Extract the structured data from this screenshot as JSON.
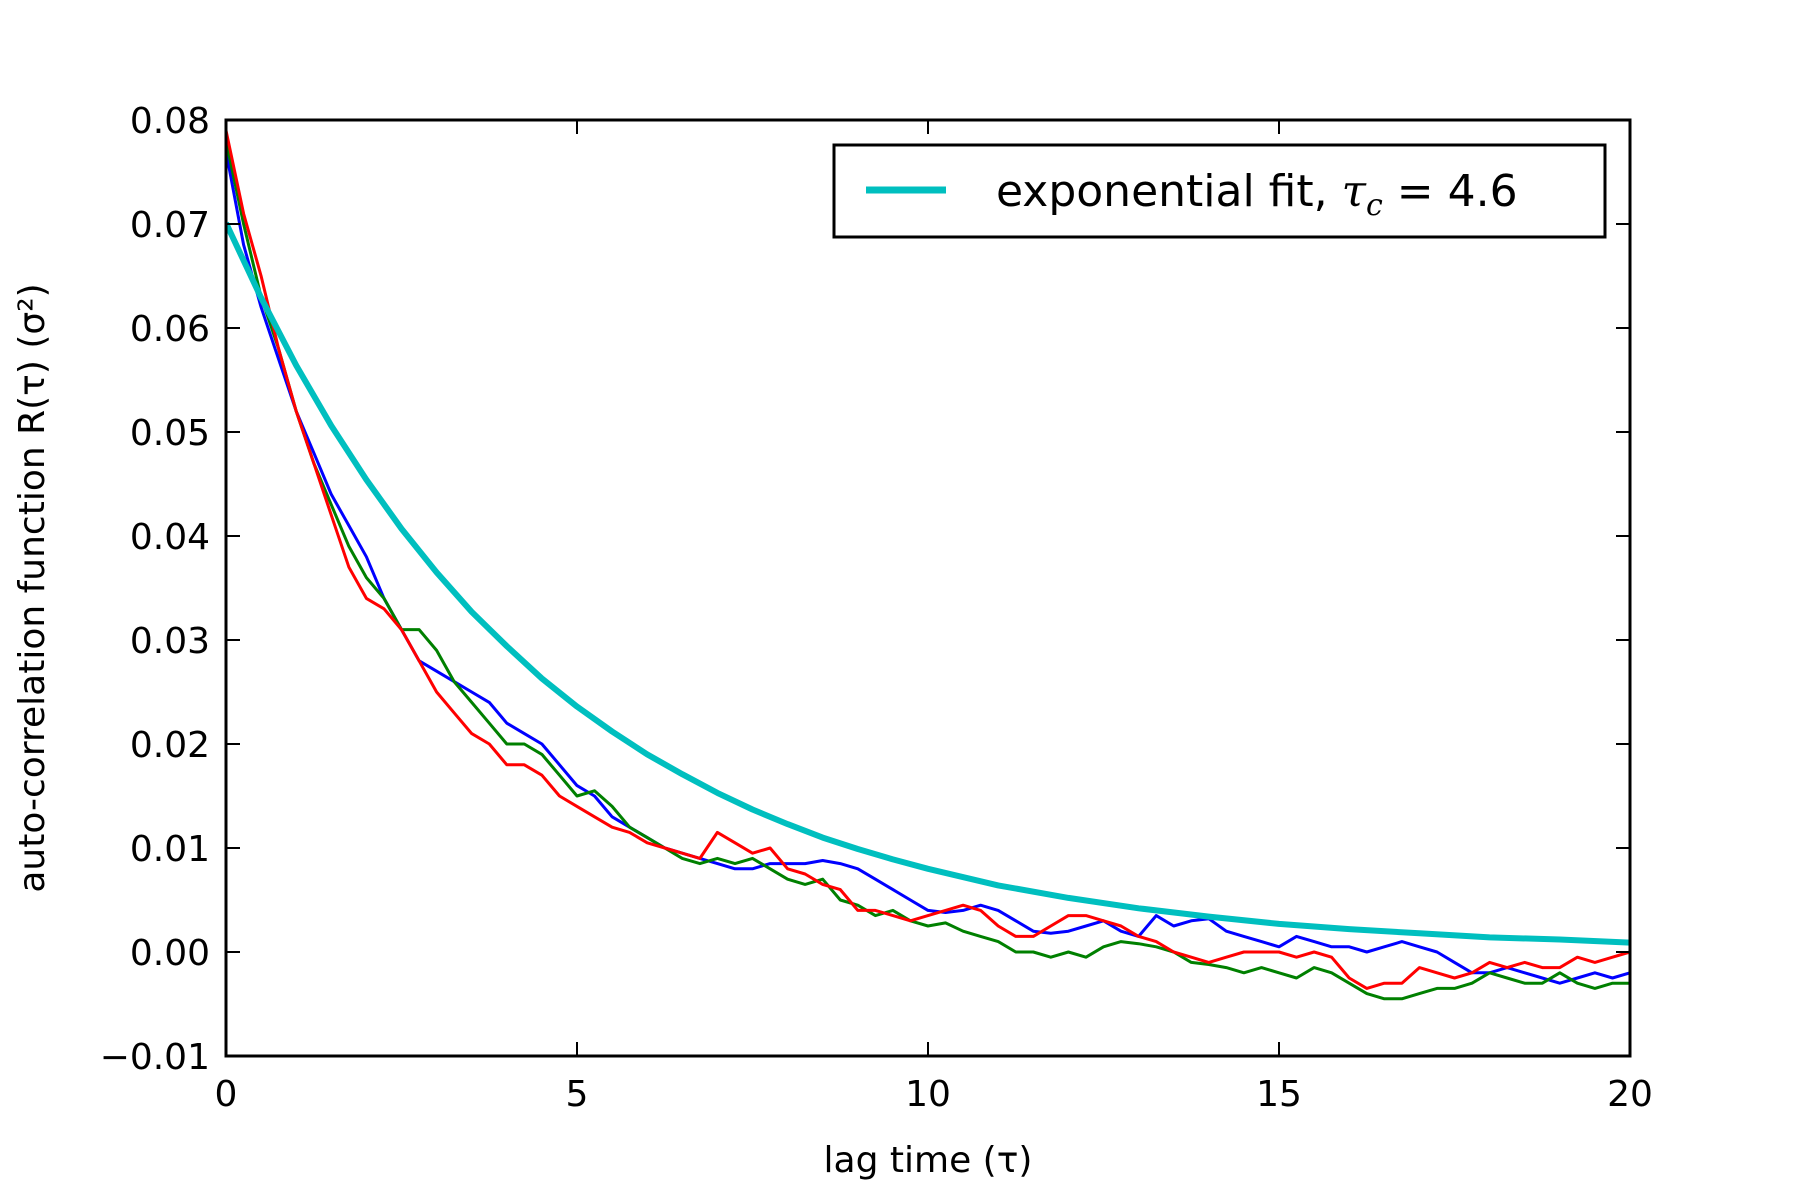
{
  "chart_data": {
    "type": "line",
    "xlabel": "lag time (τ)",
    "ylabel": "auto-correlation function R(τ) (σ²)",
    "xlim": [
      0,
      20
    ],
    "ylim": [
      -0.01,
      0.08
    ],
    "x_ticks": [
      0,
      5,
      10,
      15,
      20
    ],
    "x_tick_labels": [
      "0",
      "5",
      "10",
      "15",
      "20"
    ],
    "y_ticks": [
      -0.01,
      0.0,
      0.01,
      0.02,
      0.03,
      0.04,
      0.05,
      0.06,
      0.07,
      0.08
    ],
    "y_tick_labels": [
      "−0.01",
      "0.00",
      "0.01",
      "0.02",
      "0.03",
      "0.04",
      "0.05",
      "0.06",
      "0.07",
      "0.08"
    ],
    "grid": false,
    "legend": {
      "placement": "top-right",
      "entry_prefix": "exponential fit, ",
      "entry_math": "τ",
      "entry_math_sub": "c",
      "entry_suffix": " = 4.6"
    },
    "series": [
      {
        "color": "#0000ff",
        "x": [
          0,
          0.25,
          0.5,
          0.75,
          1,
          1.25,
          1.5,
          1.75,
          2,
          2.25,
          2.5,
          2.75,
          3,
          3.25,
          3.5,
          3.75,
          4,
          4.25,
          4.5,
          4.75,
          5,
          5.25,
          5.5,
          5.75,
          6,
          6.25,
          6.5,
          6.75,
          7,
          7.25,
          7.5,
          7.75,
          8,
          8.25,
          8.5,
          8.75,
          9,
          9.25,
          9.5,
          9.75,
          10,
          10.25,
          10.5,
          10.75,
          11,
          11.25,
          11.5,
          11.75,
          12,
          12.25,
          12.5,
          12.75,
          13,
          13.25,
          13.5,
          13.75,
          14,
          14.25,
          14.5,
          14.75,
          15,
          15.25,
          15.5,
          15.75,
          16,
          16.25,
          16.5,
          16.75,
          17,
          17.25,
          17.5,
          17.75,
          18,
          18.25,
          18.5,
          18.75,
          19,
          19.25,
          19.5,
          19.75,
          20
        ],
        "y": [
          0.077,
          0.068,
          0.062,
          0.057,
          0.052,
          0.048,
          0.044,
          0.041,
          0.038,
          0.034,
          0.031,
          0.028,
          0.027,
          0.026,
          0.025,
          0.024,
          0.022,
          0.021,
          0.02,
          0.018,
          0.016,
          0.015,
          0.013,
          0.012,
          0.011,
          0.01,
          0.0095,
          0.009,
          0.0085,
          0.008,
          0.008,
          0.0085,
          0.0085,
          0.0085,
          0.0088,
          0.0085,
          0.008,
          0.007,
          0.006,
          0.005,
          0.004,
          0.0038,
          0.004,
          0.0045,
          0.004,
          0.003,
          0.002,
          0.0018,
          0.002,
          0.0025,
          0.003,
          0.002,
          0.0015,
          0.0035,
          0.0025,
          0.003,
          0.0032,
          0.002,
          0.0015,
          0.001,
          0.0005,
          0.0015,
          0.001,
          0.0005,
          0.0005,
          0.0,
          0.0005,
          0.001,
          0.0005,
          0.0,
          -0.001,
          -0.002,
          -0.002,
          -0.0015,
          -0.002,
          -0.0025,
          -0.003,
          -0.0025,
          -0.002,
          -0.0025,
          -0.002
        ]
      },
      {
        "color": "#008000",
        "x": [
          0,
          0.25,
          0.5,
          0.75,
          1,
          1.25,
          1.5,
          1.75,
          2,
          2.25,
          2.5,
          2.75,
          3,
          3.25,
          3.5,
          3.75,
          4,
          4.25,
          4.5,
          4.75,
          5,
          5.25,
          5.5,
          5.75,
          6,
          6.25,
          6.5,
          6.75,
          7,
          7.25,
          7.5,
          7.75,
          8,
          8.25,
          8.5,
          8.75,
          9,
          9.25,
          9.5,
          9.75,
          10,
          10.25,
          10.5,
          10.75,
          11,
          11.25,
          11.5,
          11.75,
          12,
          12.25,
          12.5,
          12.75,
          13,
          13.25,
          13.5,
          13.75,
          14,
          14.25,
          14.5,
          14.75,
          15,
          15.25,
          15.5,
          15.75,
          16,
          16.25,
          16.5,
          16.75,
          17,
          17.25,
          17.5,
          17.75,
          18,
          18.25,
          18.5,
          18.75,
          19,
          19.25,
          19.5,
          19.75,
          20
        ],
        "y": [
          0.078,
          0.07,
          0.063,
          0.058,
          0.052,
          0.047,
          0.043,
          0.039,
          0.036,
          0.034,
          0.031,
          0.031,
          0.029,
          0.026,
          0.024,
          0.022,
          0.02,
          0.02,
          0.019,
          0.017,
          0.015,
          0.0155,
          0.014,
          0.012,
          0.011,
          0.01,
          0.009,
          0.0085,
          0.009,
          0.0085,
          0.009,
          0.008,
          0.007,
          0.0065,
          0.007,
          0.005,
          0.0045,
          0.0035,
          0.004,
          0.003,
          0.0025,
          0.0028,
          0.002,
          0.0015,
          0.001,
          0.0,
          0.0,
          -0.0005,
          0.0,
          -0.0005,
          0.0005,
          0.001,
          0.0008,
          0.0005,
          0.0,
          -0.001,
          -0.0012,
          -0.0015,
          -0.002,
          -0.0015,
          -0.002,
          -0.0025,
          -0.0015,
          -0.002,
          -0.003,
          -0.004,
          -0.0045,
          -0.0045,
          -0.004,
          -0.0035,
          -0.0035,
          -0.003,
          -0.002,
          -0.0025,
          -0.003,
          -0.003,
          -0.002,
          -0.003,
          -0.0035,
          -0.003,
          -0.003
        ]
      },
      {
        "color": "#ff0000",
        "x": [
          0,
          0.25,
          0.5,
          0.75,
          1,
          1.25,
          1.5,
          1.75,
          2,
          2.25,
          2.5,
          2.75,
          3,
          3.25,
          3.5,
          3.75,
          4,
          4.25,
          4.5,
          4.75,
          5,
          5.25,
          5.5,
          5.75,
          6,
          6.25,
          6.5,
          6.75,
          7,
          7.25,
          7.5,
          7.75,
          8,
          8.25,
          8.5,
          8.75,
          9,
          9.25,
          9.5,
          9.75,
          10,
          10.25,
          10.5,
          10.75,
          11,
          11.25,
          11.5,
          11.75,
          12,
          12.25,
          12.5,
          12.75,
          13,
          13.25,
          13.5,
          13.75,
          14,
          14.25,
          14.5,
          14.75,
          15,
          15.25,
          15.5,
          15.75,
          16,
          16.25,
          16.5,
          16.75,
          17,
          17.25,
          17.5,
          17.75,
          18,
          18.25,
          18.5,
          18.75,
          19,
          19.25,
          19.5,
          19.75,
          20
        ],
        "y": [
          0.079,
          0.071,
          0.065,
          0.058,
          0.052,
          0.047,
          0.042,
          0.037,
          0.034,
          0.033,
          0.031,
          0.028,
          0.025,
          0.023,
          0.021,
          0.02,
          0.018,
          0.018,
          0.017,
          0.015,
          0.014,
          0.013,
          0.012,
          0.0115,
          0.0105,
          0.01,
          0.0095,
          0.009,
          0.0115,
          0.0105,
          0.0095,
          0.01,
          0.008,
          0.0075,
          0.0065,
          0.006,
          0.004,
          0.004,
          0.0035,
          0.003,
          0.0035,
          0.004,
          0.0045,
          0.004,
          0.0025,
          0.0015,
          0.0015,
          0.0025,
          0.0035,
          0.0035,
          0.003,
          0.0025,
          0.0015,
          0.001,
          0.0,
          -0.0005,
          -0.001,
          -0.0005,
          0.0,
          0.0,
          0.0,
          -0.0005,
          0.0,
          -0.0005,
          -0.0025,
          -0.0035,
          -0.003,
          -0.003,
          -0.0015,
          -0.002,
          -0.0025,
          -0.002,
          -0.001,
          -0.0015,
          -0.001,
          -0.0015,
          -0.0015,
          -0.0005,
          -0.001,
          -0.0005,
          0.0
        ]
      },
      {
        "name_bind": "legend",
        "color": "#00bfbf",
        "x": [
          0,
          0.5,
          1,
          1.5,
          2,
          2.5,
          3,
          3.5,
          4,
          4.5,
          5,
          5.5,
          6,
          6.5,
          7,
          7.5,
          8,
          8.5,
          9,
          9.5,
          10,
          11,
          12,
          13,
          14,
          15,
          16,
          17,
          18,
          19,
          20
        ],
        "y": [
          0.0701,
          0.0629,
          0.0564,
          0.0506,
          0.0454,
          0.0407,
          0.0365,
          0.0327,
          0.0294,
          0.0263,
          0.0236,
          0.0212,
          0.019,
          0.0171,
          0.0153,
          0.0137,
          0.0123,
          0.011,
          0.0099,
          0.0089,
          0.008,
          0.0064,
          0.0052,
          0.0042,
          0.0034,
          0.0027,
          0.0022,
          0.0018,
          0.0014,
          0.0012,
          0.0009
        ]
      }
    ]
  }
}
